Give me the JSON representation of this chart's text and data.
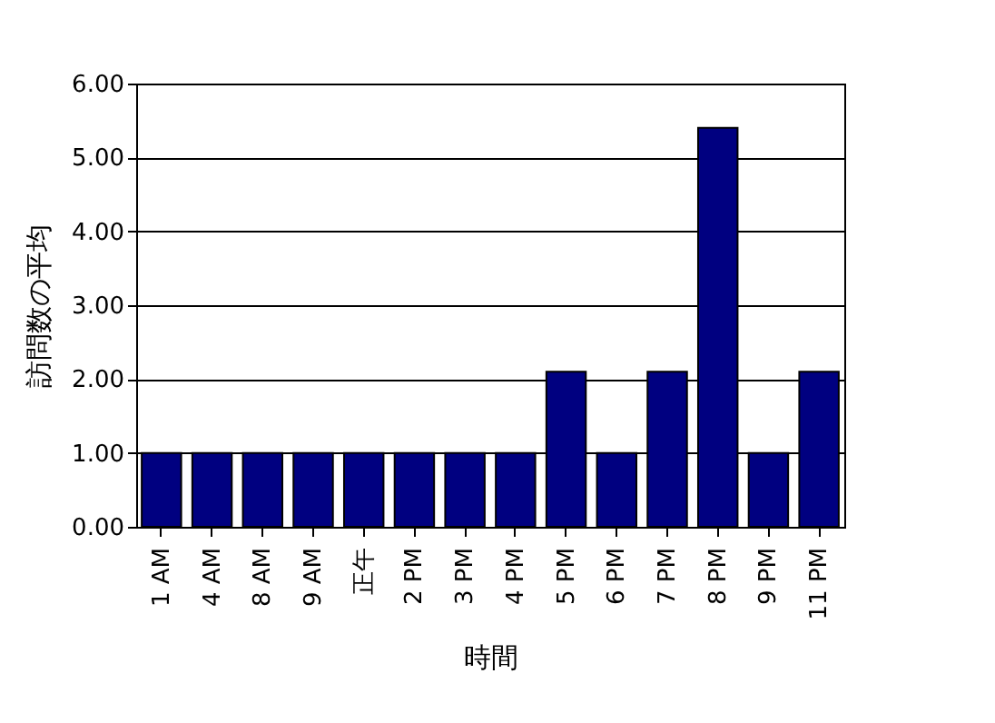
{
  "chart_data": {
    "type": "bar",
    "xlabel": "時間",
    "ylabel": "訪問数の平均",
    "categories": [
      "1 AM",
      "4 AM",
      "8 AM",
      "9 AM",
      "正午",
      "2 PM",
      "3 PM",
      "4 PM",
      "5 PM",
      "6 PM",
      "7 PM",
      "8 PM",
      "9 PM",
      "11 PM"
    ],
    "values": [
      1,
      1,
      1,
      1,
      1,
      1,
      1,
      1,
      2.1,
      1,
      2.1,
      5.4,
      1,
      2.1
    ],
    "color": "#000080",
    "ylim": [
      0,
      6
    ],
    "yticks": [
      {
        "value": 0,
        "label": "0.00"
      },
      {
        "value": 1,
        "label": "1.00"
      },
      {
        "value": 2,
        "label": "2.00"
      },
      {
        "value": 3,
        "label": "3.00"
      },
      {
        "value": 4,
        "label": "4.00"
      },
      {
        "value": 5,
        "label": "5.00"
      },
      {
        "value": 6,
        "label": "6.00"
      }
    ],
    "grid": "y"
  }
}
